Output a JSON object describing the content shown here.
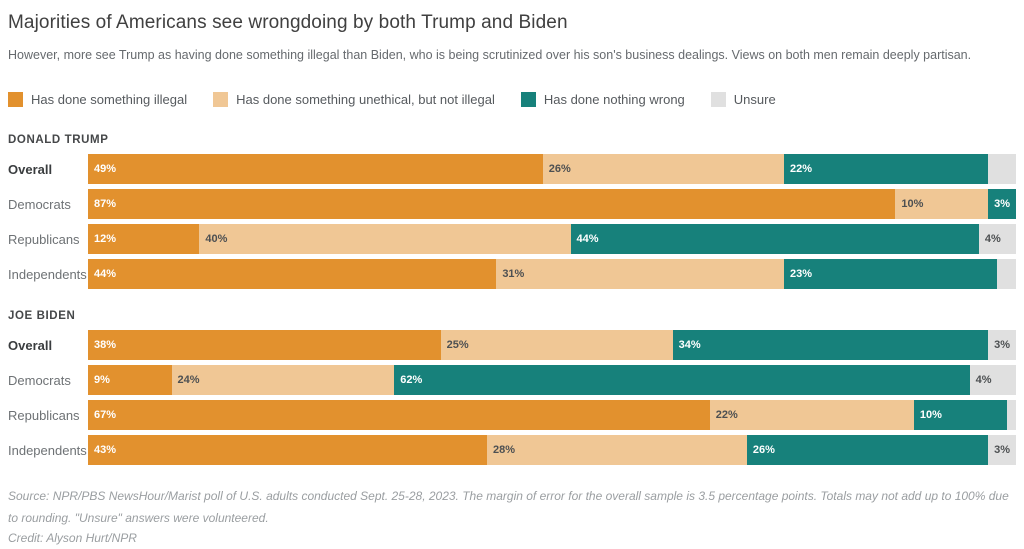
{
  "title": "Majorities of Americans see wrongdoing by both Trump and Biden",
  "subtitle": "However, more see Trump as having done something illegal than Biden, who is being scrutinized over his son's business dealings. Views on both men remain deeply partisan.",
  "colors": {
    "illegal": "#E2912E",
    "unethical": "#F0C795",
    "nothing_wrong": "#17817B",
    "unsure": "#E0E0E0"
  },
  "legend": [
    {
      "key": "illegal",
      "label": "Has done something illegal"
    },
    {
      "key": "unethical",
      "label": "Has done something unethical, but not illegal"
    },
    {
      "key": "nothing_wrong",
      "label": "Has done nothing wrong"
    },
    {
      "key": "unsure",
      "label": "Unsure"
    }
  ],
  "chart_data": {
    "type": "bar",
    "subtype": "stacked-horizontal",
    "unit": "percent",
    "series_names": [
      "Has done something illegal",
      "Has done something unethical, but not illegal",
      "Has done nothing wrong",
      "Unsure"
    ],
    "xlim": [
      0,
      100
    ],
    "sections": [
      {
        "title": "DONALD TRUMP",
        "rows": [
          {
            "label": "Overall",
            "bold": true,
            "segments": [
              {
                "key": "illegal",
                "value": 49,
                "label": "49%"
              },
              {
                "key": "unethical",
                "value": 26,
                "label": "26%"
              },
              {
                "key": "nothing_wrong",
                "value": 22,
                "label": "22%"
              },
              {
                "key": "unsure",
                "value": 3,
                "label": null
              }
            ]
          },
          {
            "label": "Democrats",
            "bold": false,
            "segments": [
              {
                "key": "illegal",
                "value": 87,
                "label": "87%"
              },
              {
                "key": "unethical",
                "value": 10,
                "label": "10%"
              },
              {
                "key": "nothing_wrong",
                "value": 3,
                "label": "3%"
              }
            ]
          },
          {
            "label": "Republicans",
            "bold": false,
            "segments": [
              {
                "key": "illegal",
                "value": 12,
                "label": "12%"
              },
              {
                "key": "unethical",
                "value": 40,
                "label": "40%"
              },
              {
                "key": "nothing_wrong",
                "value": 44,
                "label": "44%"
              },
              {
                "key": "unsure",
                "value": 4,
                "label": "4%"
              }
            ]
          },
          {
            "label": "Independents",
            "bold": false,
            "segments": [
              {
                "key": "illegal",
                "value": 44,
                "label": "44%"
              },
              {
                "key": "unethical",
                "value": 31,
                "label": "31%"
              },
              {
                "key": "nothing_wrong",
                "value": 23,
                "label": "23%"
              },
              {
                "key": "unsure",
                "value": 2,
                "label": null
              }
            ]
          }
        ]
      },
      {
        "title": "JOE BIDEN",
        "rows": [
          {
            "label": "Overall",
            "bold": true,
            "segments": [
              {
                "key": "illegal",
                "value": 38,
                "label": "38%"
              },
              {
                "key": "unethical",
                "value": 25,
                "label": "25%"
              },
              {
                "key": "nothing_wrong",
                "value": 34,
                "label": "34%"
              },
              {
                "key": "unsure",
                "value": 3,
                "label": "3%"
              }
            ]
          },
          {
            "label": "Democrats",
            "bold": false,
            "segments": [
              {
                "key": "illegal",
                "value": 9,
                "label": "9%"
              },
              {
                "key": "unethical",
                "value": 24,
                "label": "24%"
              },
              {
                "key": "nothing_wrong",
                "value": 62,
                "label": "62%"
              },
              {
                "key": "unsure",
                "value": 4,
                "label": "4%"
              }
            ]
          },
          {
            "label": "Republicans",
            "bold": false,
            "segments": [
              {
                "key": "illegal",
                "value": 67,
                "label": "67%"
              },
              {
                "key": "unethical",
                "value": 22,
                "label": "22%"
              },
              {
                "key": "nothing_wrong",
                "value": 10,
                "label": "10%"
              },
              {
                "key": "unsure",
                "value": 1,
                "label": null
              }
            ]
          },
          {
            "label": "Independents",
            "bold": false,
            "segments": [
              {
                "key": "illegal",
                "value": 43,
                "label": "43%"
              },
              {
                "key": "unethical",
                "value": 28,
                "label": "28%"
              },
              {
                "key": "nothing_wrong",
                "value": 26,
                "label": "26%"
              },
              {
                "key": "unsure",
                "value": 3,
                "label": "3%"
              }
            ]
          }
        ]
      }
    ]
  },
  "footer": {
    "source": "Source: NPR/PBS NewsHour/Marist poll of U.S. adults conducted Sept. 25-28, 2023. The margin of error for the overall sample is 3.5 percentage points. Totals may not add up to 100% due to rounding. \"Unsure\" answers were volunteered.",
    "credit": "Credit: Alyson Hurt/NPR"
  }
}
